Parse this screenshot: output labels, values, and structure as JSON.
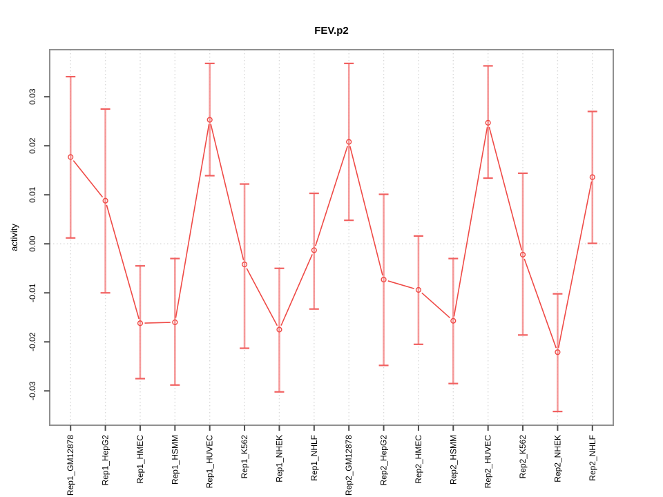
{
  "title": "FEV.p2",
  "axes": {
    "y_label": "activity",
    "y_tick_labels": [
      "0.03",
      "0.02",
      "0.01",
      "0.00",
      "-0.01",
      "-0.02",
      "-0.03"
    ],
    "y_ticks": [
      0.03,
      0.02,
      0.01,
      0.0,
      -0.01,
      -0.02,
      -0.03
    ]
  },
  "chart_data": {
    "type": "line",
    "subtype": "points-with-error-bars",
    "title": "FEV.p2",
    "xlabel": "",
    "ylabel": "activity",
    "categories": [
      "Rep1_GM12878",
      "Rep1_HepG2",
      "Rep1_HMEC",
      "Rep1_HSMM",
      "Rep1_HUVEC",
      "Rep1_K562",
      "Rep1_NHEK",
      "Rep1_NHLF",
      "Rep2_GM12878",
      "Rep2_HepG2",
      "Rep2_HMEC",
      "Rep2_HSMM",
      "Rep2_HUVEC",
      "Rep2_K562",
      "Rep2_NHEK",
      "Rep2_NHLF"
    ],
    "series": [
      {
        "name": "activity",
        "values": [
          0.0177,
          0.0088,
          -0.0162,
          -0.016,
          0.0253,
          -0.0042,
          -0.0175,
          -0.0013,
          0.0208,
          -0.0073,
          -0.0094,
          -0.0157,
          0.0247,
          -0.0022,
          -0.0221,
          0.0136
        ],
        "error_lower": [
          0.0012,
          -0.01,
          -0.0275,
          -0.0288,
          0.0139,
          -0.0213,
          -0.0302,
          -0.0133,
          0.0048,
          -0.0248,
          -0.0205,
          -0.0285,
          0.0134,
          -0.0186,
          -0.0342,
          0.0001
        ],
        "error_upper": [
          0.0341,
          0.0275,
          -0.0045,
          -0.003,
          0.0368,
          0.0122,
          -0.005,
          0.0103,
          0.0368,
          0.0101,
          0.0016,
          -0.003,
          0.0363,
          0.0144,
          -0.0102,
          0.027
        ]
      }
    ],
    "ylim": [
      -0.037,
      0.0396
    ],
    "xlim": [
      0.4,
      16.6
    ],
    "grid": "vertical dotted gridline at every category; dotted horizontal reference line at y=0",
    "legend_position": "none",
    "colors": {
      "point_line": "#EF4A46",
      "error_bar": "#F58A8A",
      "error_cap": "#F16060",
      "gridline": "#D8D8D8",
      "box_border": "#8F8F8F",
      "tick": "#4D4D4D",
      "background": "#FFFFFF"
    }
  }
}
